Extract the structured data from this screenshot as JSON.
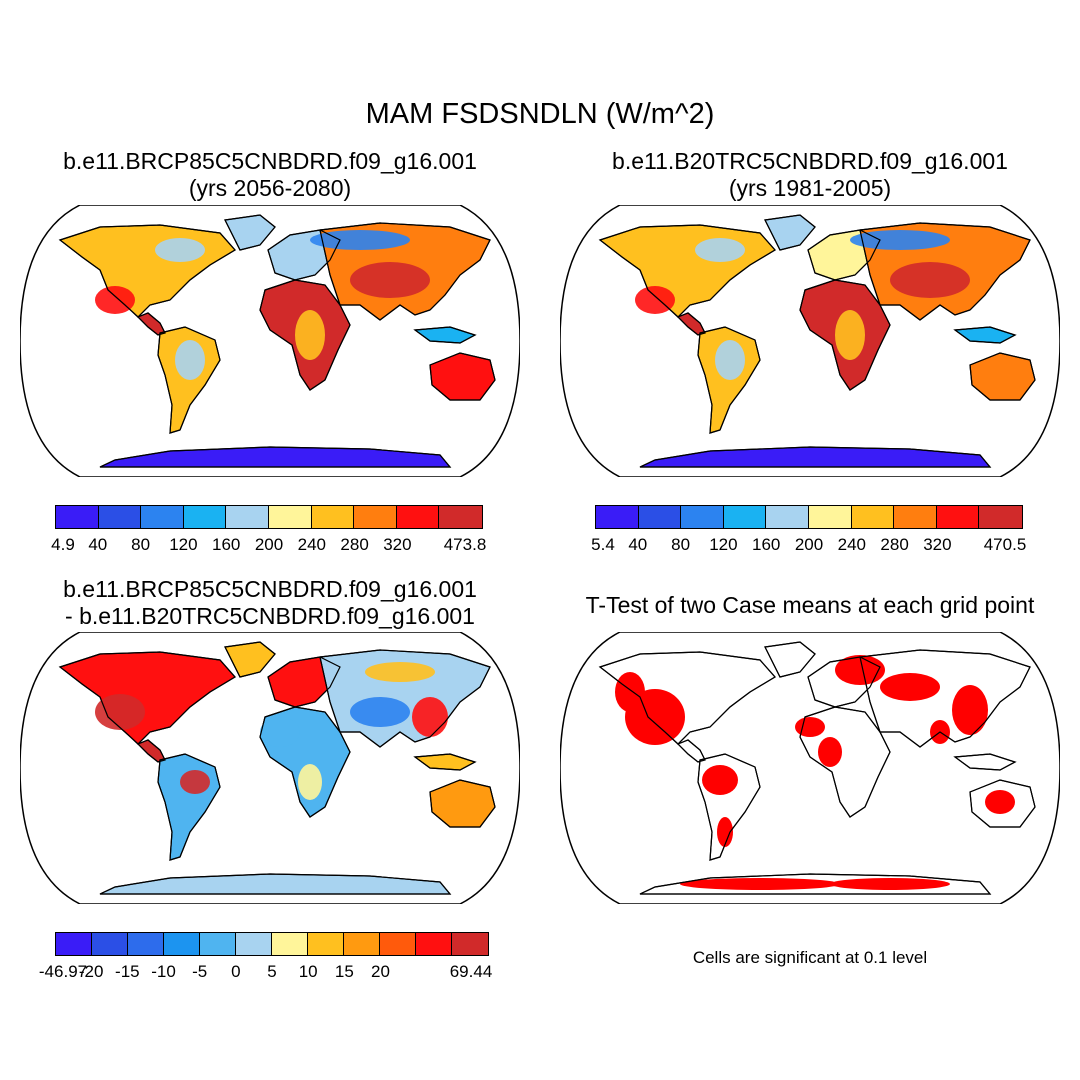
{
  "title": "MAM FSDSNDLN (W/m^2)",
  "colors": {
    "map_outline": "#000000",
    "land_base": "#ffffff",
    "significance": "#ff0000"
  },
  "panels": {
    "top_left": {
      "title_line1": "b.e11.BRCP85C5CNBDRD.f09_g16.001",
      "title_line2": "(yrs 2056-2080)",
      "colorbar": {
        "colors": [
          "#3a1cf7",
          "#2b4fe6",
          "#2c83f0",
          "#1ab2f2",
          "#a8d3f0",
          "#fff59a",
          "#ffc01f",
          "#ff7e0f",
          "#ff1010",
          "#d12a2a"
        ],
        "labels": [
          "4.9",
          "40",
          "80",
          "120",
          "160",
          "200",
          "240",
          "280",
          "320",
          "473.8"
        ]
      }
    },
    "top_right": {
      "title_line1": "b.e11.B20TRC5CNBDRD.f09_g16.001",
      "title_line2": "(yrs 1981-2005)",
      "colorbar": {
        "colors": [
          "#3a1cf7",
          "#2b4fe6",
          "#2c83f0",
          "#1ab2f2",
          "#a8d3f0",
          "#fff59a",
          "#ffc01f",
          "#ff7e0f",
          "#ff1010",
          "#d12a2a"
        ],
        "labels": [
          "5.4",
          "40",
          "80",
          "120",
          "160",
          "200",
          "240",
          "280",
          "320",
          "470.5"
        ]
      }
    },
    "bottom_left": {
      "title_line1": "b.e11.BRCP85C5CNBDRD.f09_g16.001",
      "title_line2": "- b.e11.B20TRC5CNBDRD.f09_g16.001",
      "colorbar": {
        "colors": [
          "#3a1cf7",
          "#2b4fe6",
          "#2d6cec",
          "#1c94f0",
          "#4fb4f0",
          "#a8d3f0",
          "#fff59a",
          "#ffc01f",
          "#ff9a10",
          "#ff5a0c",
          "#ff1010",
          "#d12a2a"
        ],
        "labels": [
          "-46.97",
          "-20",
          "-15",
          "-10",
          "-5",
          "0",
          "5",
          "10",
          "15",
          "20",
          "69.44"
        ]
      }
    },
    "bottom_right": {
      "title": "T-Test of two Case means at each grid point",
      "note": "Cells are significant at 0.1 level"
    }
  }
}
